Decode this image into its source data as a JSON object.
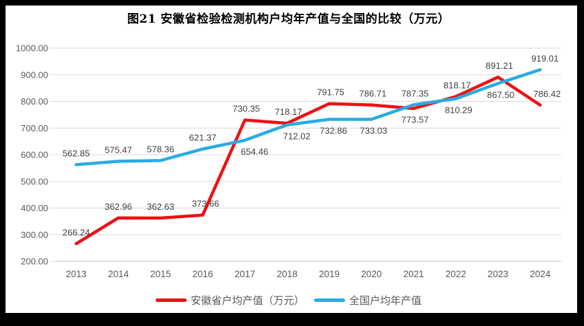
{
  "window": {
    "frame_color": "#000000",
    "background_color": "#ffffff"
  },
  "chart_data": {
    "type": "line",
    "title": "图21 安徽省检验检测机构户均年产值与全国的比较（万元）",
    "xlabel": "",
    "ylabel": "",
    "categories": [
      "2013",
      "2014",
      "2015",
      "2016",
      "2017",
      "2018",
      "2019",
      "2020",
      "2021",
      "2022",
      "2023",
      "2024"
    ],
    "series": [
      {
        "name": "安徽省户均产值（万元）",
        "color": "#ee1111",
        "values": [
          266.24,
          362.96,
          362.63,
          373.66,
          730.35,
          718.17,
          791.75,
          786.71,
          773.57,
          818.17,
          891.21,
          786.42
        ],
        "label_pos": [
          "above",
          "above",
          "above",
          "above",
          "above",
          "above",
          "above",
          "above",
          "below",
          "above",
          "above",
          "above"
        ],
        "label_dx": [
          0,
          0,
          0,
          4,
          2,
          2,
          2,
          2,
          2,
          2,
          2,
          10
        ]
      },
      {
        "name": "全国户均年产值",
        "color": "#29abe2",
        "values": [
          562.85,
          575.47,
          578.36,
          621.37,
          654.46,
          712.02,
          732.86,
          733.03,
          787.35,
          810.29,
          867.5,
          919.01
        ],
        "label_pos": [
          "above",
          "above",
          "above",
          "above",
          "below",
          "below",
          "below",
          "below",
          "above",
          "below",
          "below",
          "above"
        ],
        "label_dx": [
          0,
          0,
          0,
          0,
          14,
          14,
          6,
          3,
          2,
          4,
          4,
          7
        ]
      }
    ],
    "ylim": [
      200,
      1000
    ],
    "yticks": [
      200,
      300,
      400,
      500,
      600,
      700,
      800,
      900,
      1000
    ],
    "ytick_format": "2dp",
    "value_label_format": "2dp",
    "grid": true,
    "legend_position": "bottom",
    "styles": {
      "grid_color": "#d9d9d9",
      "axis_line_color": "#bfbfbf",
      "axis_text_color": "#595959",
      "data_label_color": "#404040",
      "line_width": 4.5
    }
  }
}
